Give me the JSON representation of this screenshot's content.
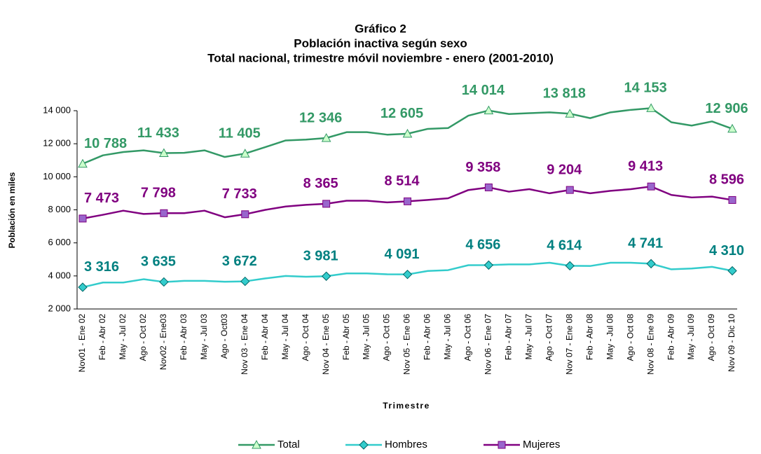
{
  "chart_data": {
    "type": "line",
    "title": [
      "Gráfico 2",
      "Población inactiva según sexo",
      "Total nacional, trimestre móvil noviembre - enero (2001-2010)"
    ],
    "x_label": "Trimestre",
    "y_label": "Población en miles",
    "categories": [
      "Nov01 - Ene 02",
      "Feb - Abr 02",
      "May - Jul 02",
      "Ago - Oct 02",
      "Nov02 - Ene03",
      "Feb - Abr 03",
      "May - Jul 03",
      "Ago - Oct03",
      "Nov 03 - Ene 04",
      "Feb - Abr 04",
      "May - Jul 04",
      "Ago - Oct 04",
      "Nov 04 - Ene 05",
      "Feb - Abr 05",
      "May - Jul 05",
      "Ago - Oct 05",
      "Nov 05 - Ene 06",
      "Feb - Abr 06",
      "May - Jul 06",
      "Ago - Oct 06",
      "Nov 06 - Ene 07",
      "Feb - Abr 07",
      "May - Jul 07",
      "Ago - Oct 07",
      "Nov 07 - Ene 08",
      "Feb - Abr 08",
      "May - Jul 08",
      "Ago - Oct 08",
      "Nov 08 - Ene 09",
      "Feb - Abr 09",
      "May - Jul 09",
      "Ago - Oct 09",
      "Nov 09 - Dic 10"
    ],
    "ylim": [
      2000,
      14000
    ],
    "yticks": [
      {
        "value": 2000,
        "label": "2 000"
      },
      {
        "value": 4000,
        "label": "4 000"
      },
      {
        "value": 6000,
        "label": "6 000"
      },
      {
        "value": 8000,
        "label": "8 000"
      },
      {
        "value": 10000,
        "label": "10 000"
      },
      {
        "value": 12000,
        "label": "12 000"
      },
      {
        "value": 14000,
        "label": "14 000"
      }
    ],
    "series": [
      {
        "name": "Total",
        "color": "#339966",
        "label_color": "#339966",
        "marker": "triangle",
        "marker_fill": "#ccffcc",
        "values": [
          10788,
          11300,
          11500,
          11600,
          11433,
          11450,
          11600,
          11200,
          11405,
          11800,
          12200,
          12250,
          12346,
          12700,
          12700,
          12550,
          12605,
          12900,
          12950,
          13700,
          14014,
          13800,
          13850,
          13900,
          13818,
          13550,
          13900,
          14050,
          14153,
          13300,
          13100,
          13350,
          12906
        ],
        "value_labels": [
          "10 788",
          null,
          null,
          null,
          "11 433",
          null,
          null,
          null,
          "11 405",
          null,
          null,
          null,
          "12 346",
          null,
          null,
          null,
          "12 605",
          null,
          null,
          null,
          "14 014",
          null,
          null,
          null,
          "13 818",
          null,
          null,
          null,
          "14 153",
          null,
          null,
          null,
          "12 906"
        ]
      },
      {
        "name": "Hombres",
        "color": "#33cccc",
        "label_color": "#008080",
        "marker": "diamond",
        "marker_fill": "#33cccc",
        "values": [
          3316,
          3600,
          3600,
          3800,
          3635,
          3700,
          3700,
          3650,
          3672,
          3850,
          4000,
          3950,
          3981,
          4150,
          4150,
          4100,
          4091,
          4300,
          4350,
          4650,
          4656,
          4700,
          4700,
          4800,
          4614,
          4600,
          4800,
          4800,
          4741,
          4400,
          4450,
          4550,
          4310
        ],
        "value_labels": [
          "3 316",
          null,
          null,
          null,
          "3 635",
          null,
          null,
          null,
          "3 672",
          null,
          null,
          null,
          "3 981",
          null,
          null,
          null,
          "4 091",
          null,
          null,
          null,
          "4 656",
          null,
          null,
          null,
          "4 614",
          null,
          null,
          null,
          "4 741",
          null,
          null,
          null,
          "4 310"
        ]
      },
      {
        "name": "Mujeres",
        "color": "#800080",
        "label_color": "#800080",
        "marker": "square",
        "marker_fill": "#9966cc",
        "values": [
          7473,
          7700,
          7950,
          7750,
          7798,
          7800,
          7950,
          7550,
          7733,
          8000,
          8200,
          8300,
          8365,
          8550,
          8550,
          8450,
          8514,
          8600,
          8700,
          9200,
          9358,
          9100,
          9250,
          9000,
          9204,
          9000,
          9150,
          9250,
          9413,
          8900,
          8750,
          8800,
          8596
        ],
        "value_labels": [
          "7 473",
          null,
          null,
          null,
          "7 798",
          null,
          null,
          null,
          "7 733",
          null,
          null,
          null,
          "8 365",
          null,
          null,
          null,
          "8 514",
          null,
          null,
          null,
          "9 358",
          null,
          null,
          null,
          "9 204",
          null,
          null,
          null,
          "9 413",
          null,
          null,
          null,
          "8 596"
        ]
      }
    ],
    "legend": "bottom"
  }
}
